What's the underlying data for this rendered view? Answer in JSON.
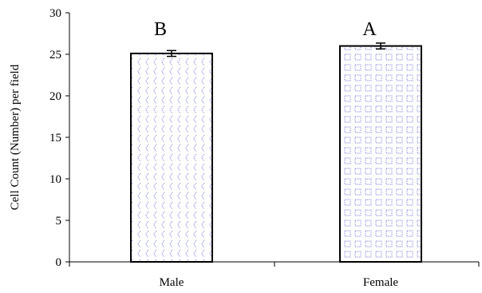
{
  "chart_data": {
    "type": "bar",
    "title": "",
    "xlabel": "",
    "ylabel": "Cell Count (Number) per field",
    "categories": [
      "Male",
      "Female"
    ],
    "values": [
      25.1,
      26.0
    ],
    "error": [
      0.35,
      0.35
    ],
    "significance_labels": [
      "B",
      "A"
    ],
    "ylim": [
      0,
      30
    ],
    "yticks": [
      0,
      5,
      10,
      15,
      20,
      25,
      30
    ],
    "grid": false,
    "legend": "none",
    "bar_patterns": [
      "dotted-chevron",
      "dotted-grid"
    ],
    "colors": {
      "pattern": "#6b6bd6",
      "bar_fill": "#ffffff",
      "axis": "#000000"
    }
  }
}
